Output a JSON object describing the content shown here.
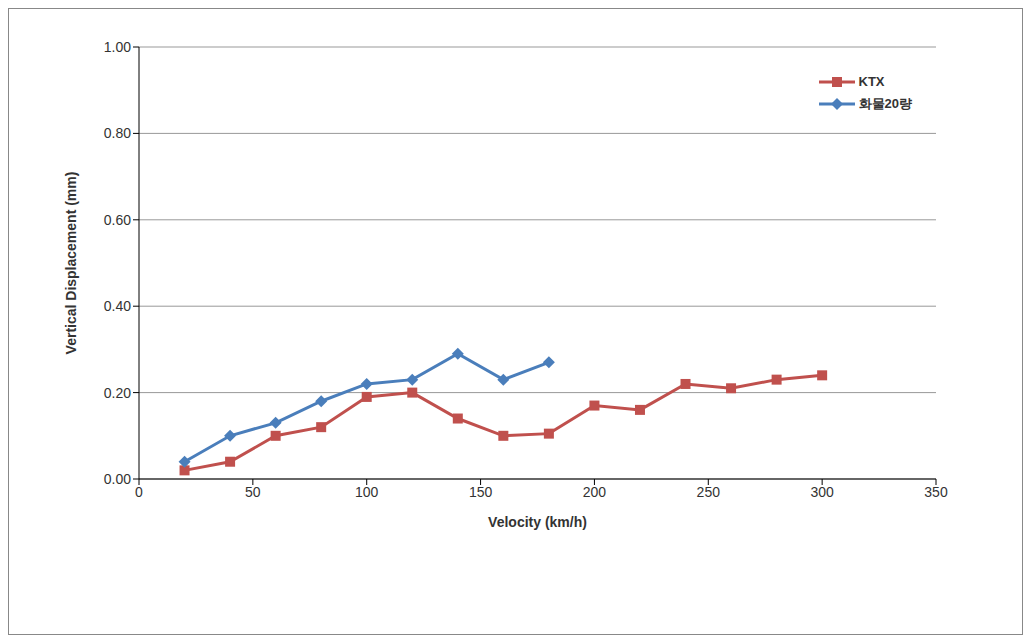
{
  "chart_data": {
    "type": "line",
    "x_label": "Velocity (km/h)",
    "y_label": "Vertical Displacement (mm)",
    "x": [
      20,
      40,
      60,
      80,
      100,
      120,
      140,
      160,
      180,
      200,
      220,
      240,
      260,
      280,
      300
    ],
    "series": [
      {
        "name": "KTX",
        "color": "#c0504d",
        "marker": "square",
        "values": [
          0.02,
          0.04,
          0.1,
          0.12,
          0.19,
          0.2,
          0.14,
          0.1,
          0.105,
          0.17,
          0.16,
          0.22,
          0.21,
          0.23,
          0.24
        ]
      },
      {
        "name": "화물20량",
        "color": "#4a7ebb",
        "marker": "diamond",
        "values": [
          0.04,
          0.1,
          0.13,
          0.18,
          0.22,
          0.23,
          0.29,
          0.23,
          0.27,
          null,
          null,
          null,
          null,
          null,
          null
        ]
      }
    ],
    "xlim": [
      0,
      350
    ],
    "xticks": [
      0,
      50,
      100,
      150,
      200,
      250,
      300,
      350
    ],
    "ylim": [
      0,
      1
    ],
    "yticks": [
      {
        "value": 0,
        "label": "0.00"
      },
      {
        "value": 0.2,
        "label": "0.20"
      },
      {
        "value": 0.4,
        "label": "0.40"
      },
      {
        "value": 0.6,
        "label": "0.60"
      },
      {
        "value": 0.8,
        "label": "0.80"
      },
      {
        "value": 1,
        "label": "1.00"
      }
    ],
    "grid": true,
    "legend": "upper right"
  }
}
